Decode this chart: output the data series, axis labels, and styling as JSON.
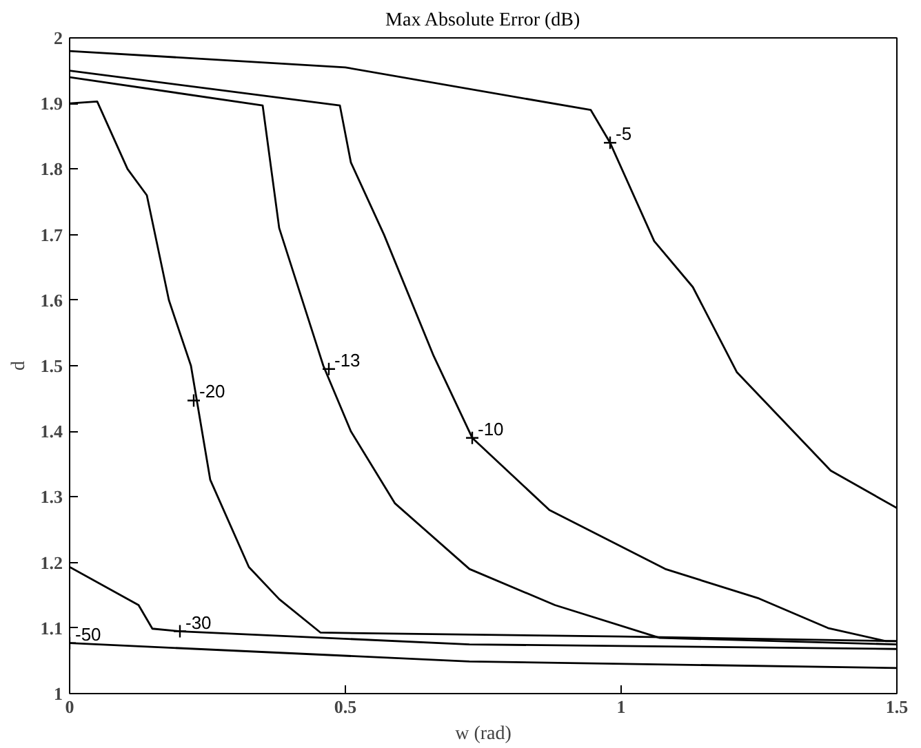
{
  "chart_data": {
    "type": "line",
    "title": "Max Absolute Error (dB)",
    "xlabel": "w (rad)",
    "ylabel": "d",
    "xlim": [
      0,
      1.5
    ],
    "ylim": [
      1,
      2
    ],
    "xticks": [
      0,
      0.5,
      1,
      1.5
    ],
    "yticks": [
      1,
      1.1,
      1.2,
      1.3,
      1.4,
      1.5,
      1.6,
      1.7,
      1.8,
      1.9,
      2
    ],
    "line_style": "solid",
    "series": [
      {
        "color": "#000000",
        "x": [
          0,
          0.5,
          0.945,
          0.98,
          1.06,
          1.13,
          1.21,
          1.38,
          1.5
        ],
        "values": [
          1.98,
          1.955,
          1.89,
          1.84,
          1.69,
          1.62,
          1.49,
          1.34,
          1.283
        ]
      },
      {
        "color": "#000000",
        "x": [
          0,
          0.49,
          0.51,
          0.57,
          0.66,
          0.73,
          0.87,
          1.08,
          1.25,
          1.375,
          1.48,
          1.5
        ],
        "values": [
          1.95,
          1.897,
          1.81,
          1.7,
          1.515,
          1.39,
          1.28,
          1.19,
          1.145,
          1.1,
          1.08,
          1.08
        ]
      },
      {
        "color": "#000000",
        "x": [
          0,
          0.35,
          0.38,
          0.46,
          0.51,
          0.59,
          0.725,
          0.88,
          1.07,
          1.5
        ],
        "values": [
          1.94,
          1.897,
          1.71,
          1.5,
          1.4,
          1.29,
          1.19,
          1.135,
          1.085,
          1.075
        ]
      },
      {
        "color": "#000000",
        "x": [
          0,
          0.05,
          0.105,
          0.14,
          0.18,
          0.22,
          0.255,
          0.325,
          0.38,
          0.455,
          1.0,
          1.5
        ],
        "values": [
          1.9,
          1.903,
          1.8,
          1.76,
          1.6,
          1.5,
          1.326,
          1.193,
          1.144,
          1.093,
          1.087,
          1.08
        ]
      },
      {
        "color": "#000000",
        "x": [
          0,
          0.125,
          0.15,
          0.2,
          0.725,
          1.5
        ],
        "values": [
          1.193,
          1.135,
          1.099,
          1.095,
          1.075,
          1.068
        ]
      },
      {
        "color": "#000000",
        "x": [
          0,
          0.725,
          1.5
        ],
        "values": [
          1.077,
          1.049,
          1.039
        ]
      }
    ],
    "annotations": [
      {
        "text": "-5",
        "x": 0.98,
        "y": 1.84
      },
      {
        "text": "-10",
        "x": 0.73,
        "y": 1.39
      },
      {
        "text": "-13",
        "x": 0.47,
        "y": 1.495
      },
      {
        "text": "-20",
        "x": 0.225,
        "y": 1.447
      },
      {
        "text": "-30",
        "x": 0.2,
        "y": 1.095
      },
      {
        "text": "-50",
        "x": 0.0,
        "y": 1.077
      }
    ]
  }
}
